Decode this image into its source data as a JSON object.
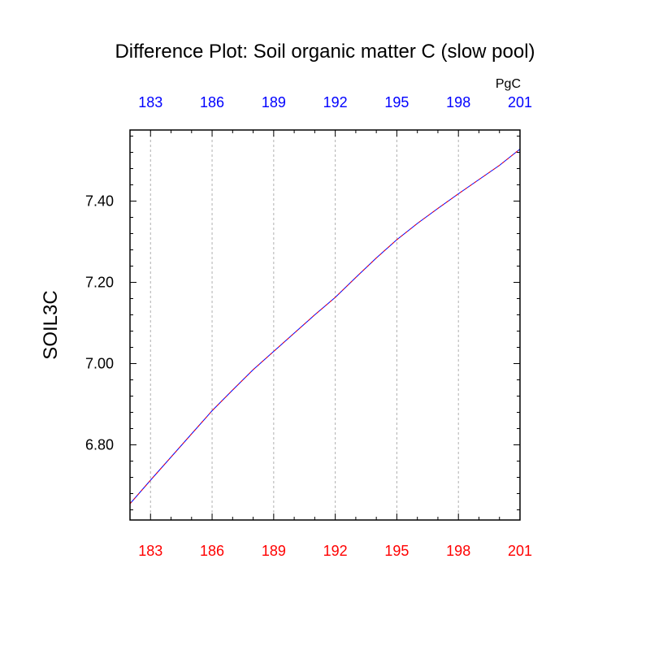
{
  "chart_data": {
    "type": "line",
    "title": "Difference Plot: Soil organic matter C (slow pool)",
    "units": "PgC",
    "ylabel": "SOIL3C",
    "xlim": [
      182,
      201
    ],
    "ylim": [
      6.615,
      7.575
    ],
    "grid": "vertical-dashed",
    "x_ticks": [
      183,
      186,
      189,
      192,
      195,
      198,
      201
    ],
    "x_tick_labels": [
      "183",
      "186",
      "189",
      "192",
      "195",
      "198",
      "201"
    ],
    "x_tick_color_bottom": "#ff0000",
    "x_tick_color_top": "#0000ff",
    "y_ticks": [
      6.8,
      7.0,
      7.2,
      7.4
    ],
    "y_tick_labels": [
      "6.80",
      "7.00",
      "7.20",
      "7.40"
    ],
    "series": [
      {
        "color_primary": "#0000ff",
        "color_dash": "#ff0000",
        "x": [
          182,
          183,
          184,
          185,
          186,
          187,
          188,
          189,
          190,
          191,
          192,
          193,
          194,
          195,
          196,
          197,
          198,
          199,
          200,
          201
        ],
        "values": [
          6.655,
          6.713,
          6.77,
          6.827,
          6.884,
          6.935,
          6.985,
          7.03,
          7.075,
          7.12,
          7.163,
          7.212,
          7.26,
          7.305,
          7.345,
          7.382,
          7.418,
          7.453,
          7.488,
          7.528
        ]
      }
    ]
  }
}
